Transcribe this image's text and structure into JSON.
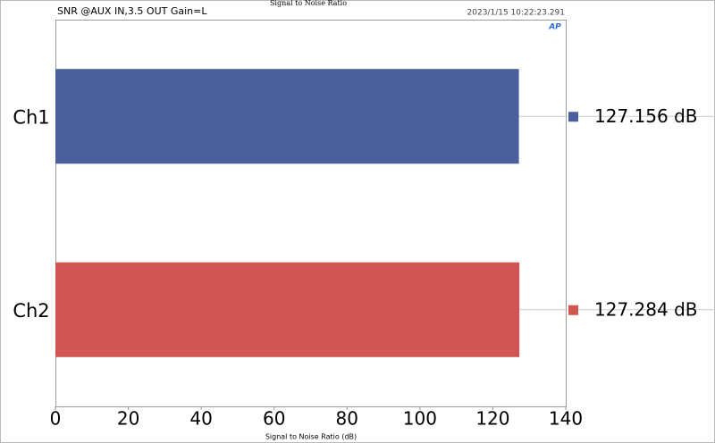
{
  "chart_data": {
    "type": "hbar",
    "title": "Signal to Noise Ratio",
    "subtitle": "SNR @AUX IN,3.5 OUT Gain=L",
    "timestamp": "2023/1/15 10:22:23.291",
    "xlabel": "Signal to Noise Ratio (dB)",
    "categories": [
      "Ch1",
      "Ch2"
    ],
    "values": [
      127.156,
      127.284
    ],
    "value_labels": [
      "127.156 dB",
      "127.284 dB"
    ],
    "colors": [
      "#4a5f9c",
      "#d05553"
    ],
    "xlim": [
      0,
      140
    ],
    "xticks": [
      0,
      20,
      40,
      60,
      80,
      100,
      120,
      140
    ],
    "grid": false
  }
}
